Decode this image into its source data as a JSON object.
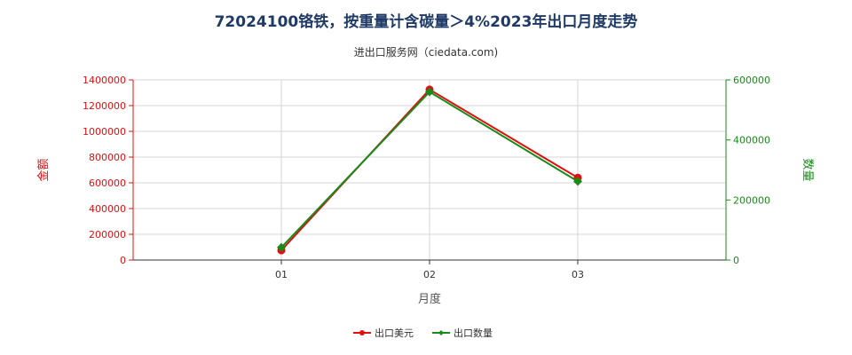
{
  "chart_data": {
    "type": "line",
    "title": "72024100铬铁，按重量计含碳量＞4%2023年出口月度走势",
    "subtitle": "进出口服务网（ciedata.com)",
    "xlabel": "月度",
    "ylabel_left": "金额",
    "ylabel_right": "数量",
    "categories": [
      "01",
      "02",
      "03"
    ],
    "y_left_ticks": [
      "0",
      "200000",
      "400000",
      "600000",
      "800000",
      "1000000",
      "1200000",
      "1400000"
    ],
    "y_right_ticks": [
      "0",
      "200000",
      "400000",
      "600000"
    ],
    "ylim_left": [
      0,
      1400000
    ],
    "ylim_right": [
      0,
      600000
    ],
    "series": [
      {
        "name": "出口美元",
        "axis": "left",
        "color": "#e01010",
        "values": [
          75000,
          1325000,
          640000
        ]
      },
      {
        "name": "出口数量",
        "axis": "right",
        "color": "#1a8a1a",
        "values": [
          42000,
          560000,
          262000
        ]
      }
    ],
    "grid": true,
    "legend_position": "bottom"
  }
}
